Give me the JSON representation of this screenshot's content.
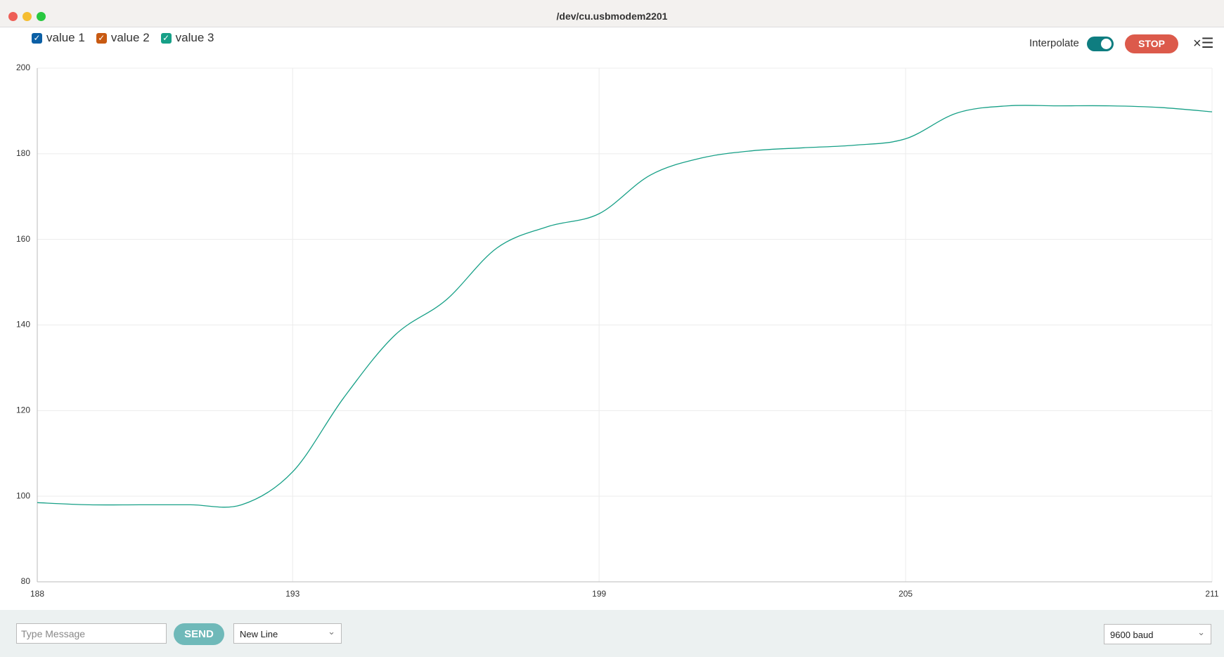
{
  "window": {
    "title": "/dev/cu.usbmodem2201"
  },
  "controls": {
    "interpolate": "Interpolate",
    "interpolate_on": true,
    "stop": "STOP"
  },
  "footer": {
    "placeholder": "Type Message",
    "send": "SEND",
    "line_ending": "New Line",
    "baud": "9600 baud"
  },
  "chart_data": {
    "type": "line",
    "x": [
      188,
      189,
      190,
      191,
      192,
      193,
      194,
      195,
      196,
      197,
      198,
      199,
      200,
      201,
      202,
      203,
      204,
      205,
      206,
      207,
      208,
      209,
      210,
      211
    ],
    "series": [
      {
        "name": "value 1",
        "color": "#0b5fa5",
        "values": [
          null,
          null,
          null,
          null,
          null,
          null,
          null,
          null,
          null,
          null,
          null,
          null,
          null,
          null,
          null,
          null,
          null,
          null,
          null,
          null,
          null,
          null,
          null,
          null
        ]
      },
      {
        "name": "value 2",
        "color": "#c85a12",
        "values": [
          null,
          null,
          null,
          null,
          null,
          null,
          null,
          null,
          null,
          null,
          null,
          null,
          null,
          null,
          null,
          null,
          null,
          null,
          null,
          null,
          null,
          null,
          null,
          null
        ]
      },
      {
        "name": "value 3",
        "color": "#17a087",
        "values": [
          98.5,
          98,
          98,
          98,
          98,
          105.7,
          123,
          137.6,
          145.8,
          158,
          163,
          166,
          175,
          179,
          180.7,
          181.4,
          182,
          183.5,
          189.5,
          191.2,
          191.2,
          191.2,
          190.8,
          189.8
        ]
      }
    ],
    "xlim": [
      188,
      211
    ],
    "xticks": [
      188,
      193,
      199,
      205,
      211
    ],
    "ylim": [
      80,
      200
    ],
    "yticks": [
      80,
      100,
      120,
      140,
      160,
      180,
      200
    ],
    "grid": true
  }
}
